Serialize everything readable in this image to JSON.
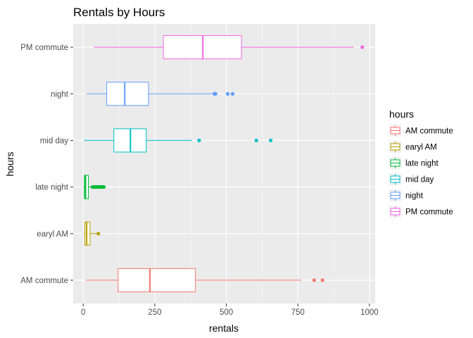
{
  "chart_data": {
    "type": "boxplot",
    "title": "Rentals by Hours",
    "xlabel": "rentals",
    "ylabel": "hours",
    "xlim": [
      -35,
      1020
    ],
    "xticks": [
      0,
      250,
      500,
      750,
      1000
    ],
    "xtick_labels": [
      "0",
      "250",
      "500",
      "750",
      "1000"
    ],
    "orientation": "horizontal",
    "grid": true,
    "legend": {
      "title": "hours",
      "position": "right"
    },
    "categories": [
      "AM commute",
      "earyl AM",
      "late night",
      "mid day",
      "night",
      "PM commute"
    ],
    "series": [
      {
        "name": "AM commute",
        "color": "#F8766D",
        "min": 8,
        "q1": 122,
        "median": 233,
        "q3": 392,
        "max": 762,
        "outliers": [
          807,
          836
        ]
      },
      {
        "name": "earyl AM",
        "color": "#B79F00",
        "min": 1,
        "q1": 6,
        "median": 12,
        "q3": 24,
        "max": 48,
        "outliers": [
          53
        ]
      },
      {
        "name": "late night",
        "color": "#00BA38",
        "min": 1,
        "q1": 4,
        "median": 8,
        "q3": 18,
        "max": 30,
        "outliers": [
          33,
          36,
          39,
          42,
          45,
          48,
          51,
          54,
          57,
          60,
          63,
          66,
          69,
          72
        ]
      },
      {
        "name": "mid day",
        "color": "#00BFC4",
        "min": 2,
        "q1": 107,
        "median": 165,
        "q3": 220,
        "max": 380,
        "outliers": [
          405,
          605,
          655
        ]
      },
      {
        "name": "night",
        "color": "#619CFF",
        "min": 12,
        "q1": 82,
        "median": 145,
        "q3": 228,
        "max": 450,
        "outliers": [
          458,
          462,
          505,
          522
        ]
      },
      {
        "name": "PM commute",
        "color": "#F564E3",
        "min": 37,
        "q1": 280,
        "median": 418,
        "q3": 553,
        "max": 945,
        "outliers": [
          975
        ]
      }
    ]
  }
}
